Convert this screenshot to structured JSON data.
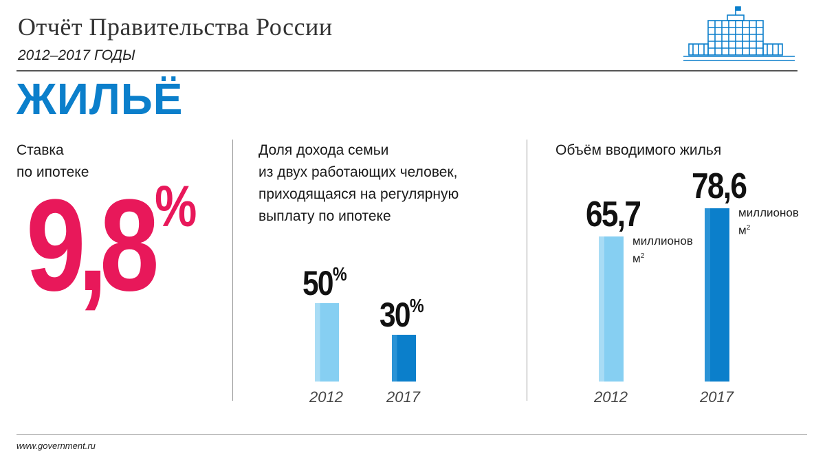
{
  "header": {
    "title": "Отчёт Правительства России",
    "subtitle": "2012–2017 ГОДЫ"
  },
  "section_title": "ЖИЛЬЁ",
  "mortgage": {
    "label_line1": "Ставка",
    "label_line2": "по ипотеке",
    "value": "9,8",
    "unit": "%"
  },
  "chart_data": [
    {
      "type": "bar",
      "title": "Доля дохода семьи из двух работающих человек, приходящаяся на регулярную выплату по ипотеке",
      "title_lines": [
        "Доля дохода семьи",
        "из двух работающих человек,",
        "приходящаяся на регулярную",
        "выплату по ипотеке"
      ],
      "categories": [
        "2012",
        "2017"
      ],
      "values": [
        50,
        30
      ],
      "value_labels": [
        "50",
        "30"
      ],
      "unit": "%",
      "xlabel": "",
      "ylabel": "",
      "ylim": [
        0,
        50
      ]
    },
    {
      "type": "bar",
      "title": "Объём вводимого жилья",
      "categories": [
        "2012",
        "2017"
      ],
      "values": [
        65.7,
        78.6
      ],
      "value_labels": [
        "65,7",
        "78,6"
      ],
      "unit_line1": "миллионов",
      "unit_line2": "м",
      "unit_sup": "2",
      "xlabel": "",
      "ylabel": "",
      "ylim": [
        0,
        78.6
      ]
    }
  ],
  "colors": {
    "accent_blue": "#0b7fcb",
    "light_blue": "#86cff2",
    "rate_pink": "#e8185a"
  },
  "logo": {
    "icon": "government-house-icon"
  },
  "footer": {
    "site": "www.government.ru"
  }
}
